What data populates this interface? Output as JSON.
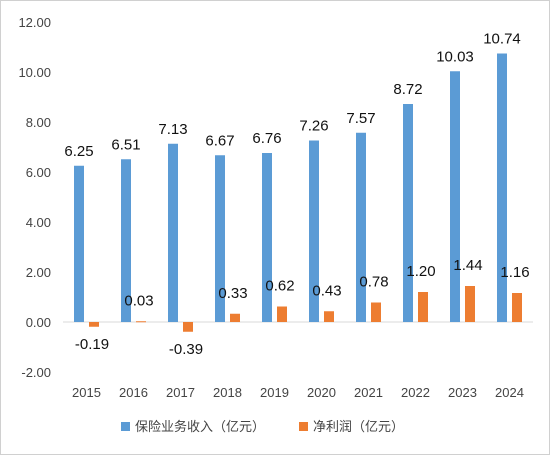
{
  "chart_data": {
    "type": "bar",
    "categories": [
      "2015",
      "2016",
      "2017",
      "2018",
      "2019",
      "2020",
      "2021",
      "2022",
      "2023",
      "2024"
    ],
    "series": [
      {
        "name": "保险业务收入（亿元）",
        "color": "#5B9BD5",
        "values": [
          6.25,
          6.51,
          7.13,
          6.67,
          6.76,
          7.26,
          7.57,
          8.72,
          10.03,
          10.74
        ],
        "labels": [
          "6.25",
          "6.51",
          "7.13",
          "6.67",
          "6.76",
          "7.26",
          "7.57",
          "8.72",
          "10.03",
          "10.74"
        ]
      },
      {
        "name": "净利润（亿元）",
        "color": "#ED7D31",
        "values": [
          -0.19,
          0.03,
          -0.39,
          0.33,
          0.62,
          0.43,
          0.78,
          1.2,
          1.44,
          1.16
        ],
        "labels": [
          "-0.19",
          "0.03",
          "-0.39",
          "0.33",
          "0.62",
          "0.43",
          "0.78",
          "1.20",
          "1.44",
          "1.16"
        ]
      }
    ],
    "ylim": [
      -2,
      12
    ],
    "yticks": [
      -2,
      0,
      2,
      4,
      6,
      8,
      10,
      12
    ],
    "ytick_labels": [
      "-2.00",
      "0.00",
      "2.00",
      "4.00",
      "6.00",
      "8.00",
      "10.00",
      "12.00"
    ],
    "grid": false,
    "legend_position": "bottom"
  }
}
